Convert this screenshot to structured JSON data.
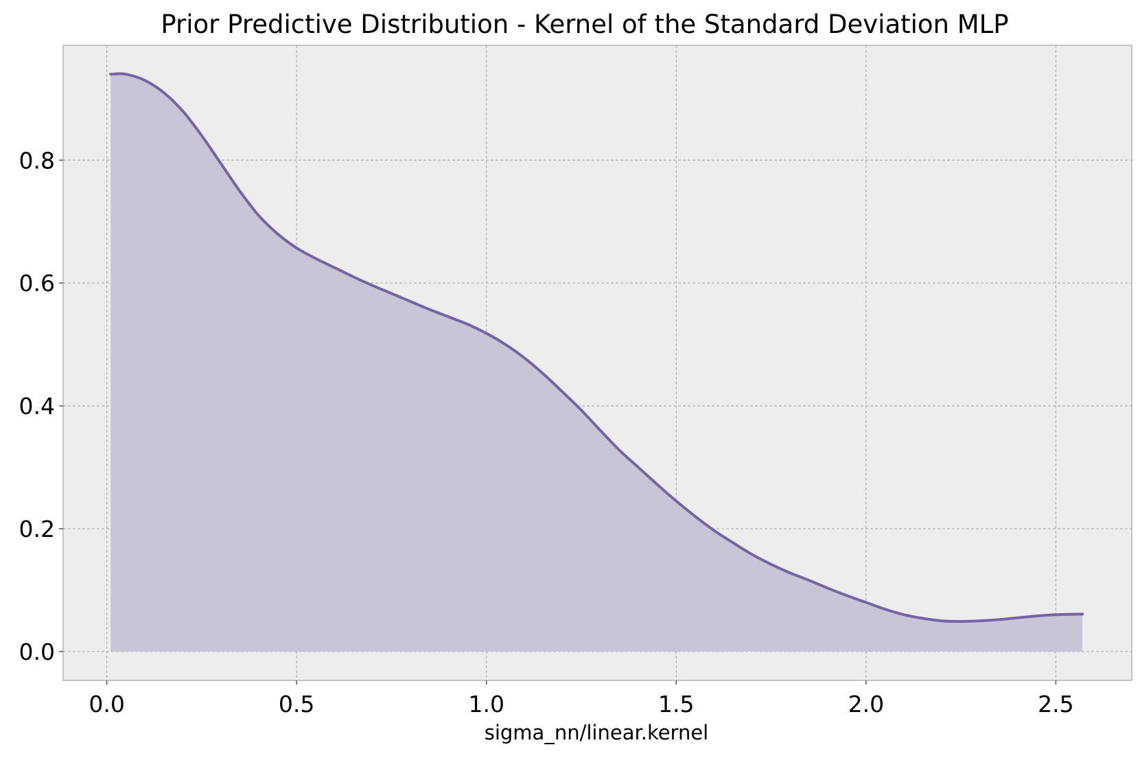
{
  "chart_data": {
    "type": "area",
    "title": "Prior Predictive Distribution - Kernel of the Standard Deviation MLP",
    "xlabel": "sigma_nn/linear.kernel",
    "ylabel": "",
    "xlim": [
      -0.115,
      2.7
    ],
    "ylim": [
      -0.047,
      0.987
    ],
    "grid": true,
    "legend": "none",
    "x_ticks": [
      0.0,
      0.5,
      1.0,
      1.5,
      2.0,
      2.5
    ],
    "x_tick_labels": [
      "0.0",
      "0.5",
      "1.0",
      "1.5",
      "2.0",
      "2.5"
    ],
    "y_ticks": [
      0.0,
      0.2,
      0.4,
      0.6,
      0.8
    ],
    "y_tick_labels": [
      "0.0",
      "0.2",
      "0.4",
      "0.6",
      "0.8"
    ],
    "colors": {
      "line": "#7562a7",
      "fill": "#c9c4d6",
      "plot_background": "#ededed",
      "axes_edge": "#b3b3b3"
    },
    "series": [
      {
        "x": [
          0.01,
          0.05,
          0.1,
          0.15,
          0.2,
          0.25,
          0.3,
          0.35,
          0.4,
          0.45,
          0.5,
          0.55,
          0.6,
          0.65,
          0.7,
          0.75,
          0.8,
          0.85,
          0.9,
          0.95,
          1.0,
          1.05,
          1.1,
          1.15,
          1.2,
          1.25,
          1.3,
          1.35,
          1.4,
          1.45,
          1.5,
          1.55,
          1.6,
          1.65,
          1.7,
          1.75,
          1.8,
          1.85,
          1.9,
          1.95,
          2.0,
          2.05,
          2.1,
          2.15,
          2.2,
          2.25,
          2.3,
          2.35,
          2.4,
          2.45,
          2.5,
          2.57
        ],
        "y": [
          0.94,
          0.94,
          0.93,
          0.91,
          0.88,
          0.84,
          0.795,
          0.75,
          0.71,
          0.68,
          0.657,
          0.64,
          0.625,
          0.61,
          0.596,
          0.583,
          0.57,
          0.557,
          0.545,
          0.533,
          0.518,
          0.5,
          0.478,
          0.452,
          0.423,
          0.393,
          0.36,
          0.328,
          0.3,
          0.272,
          0.245,
          0.22,
          0.197,
          0.177,
          0.158,
          0.142,
          0.128,
          0.116,
          0.103,
          0.091,
          0.08,
          0.069,
          0.06,
          0.054,
          0.05,
          0.049,
          0.05,
          0.052,
          0.055,
          0.058,
          0.06,
          0.061
        ]
      }
    ]
  }
}
